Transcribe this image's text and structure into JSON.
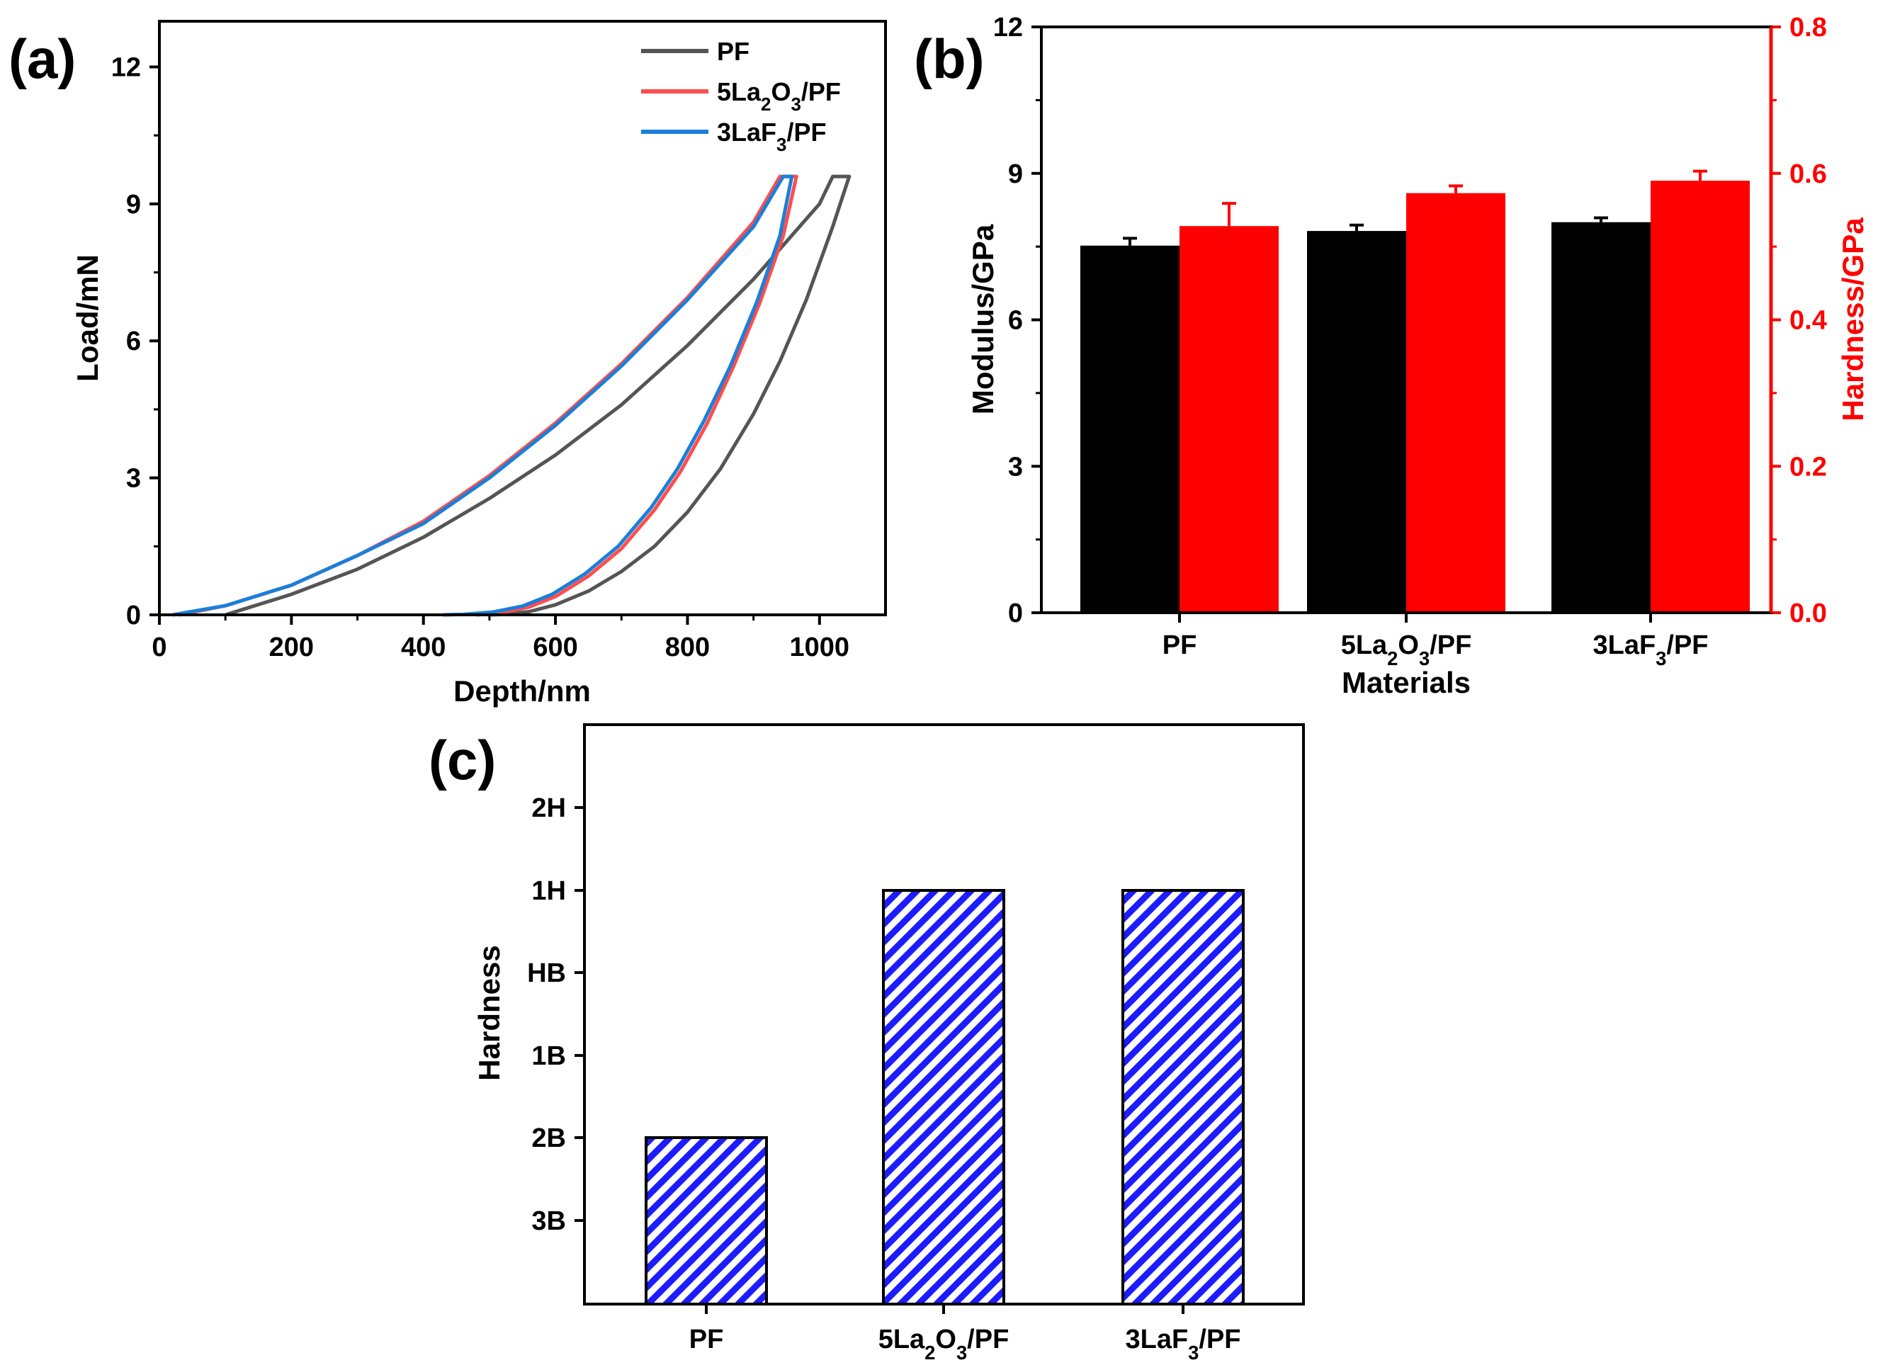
{
  "chart_data": [
    {
      "panel_label": "(a)",
      "type": "line",
      "xlabel": "Depth/nm",
      "ylabel": "Load/mN",
      "xlim": [
        0,
        1100
      ],
      "ylim": [
        0,
        13
      ],
      "xticks": [
        0,
        200,
        400,
        600,
        800,
        1000
      ],
      "yticks": [
        0,
        3,
        6,
        9,
        12
      ],
      "legend_position": "top-right",
      "series": [
        {
          "name_parts": [
            {
              "t": "PF"
            }
          ],
          "color": "#555555",
          "loading": {
            "x": [
              100,
              200,
              300,
              400,
              500,
              600,
              700,
              800,
              900,
              1000,
              1020
            ],
            "y": [
              0.0,
              0.45,
              1.0,
              1.7,
              2.55,
              3.5,
              4.6,
              5.9,
              7.35,
              9.0,
              9.6
            ]
          },
          "hold": {
            "x": [
              1020,
              1045
            ],
            "y": [
              9.6,
              9.6
            ]
          },
          "unloading": {
            "x": [
              1045,
              1020,
              980,
              940,
              900,
              850,
              800,
              750,
              700,
              650,
              600,
              560,
              520,
              500
            ],
            "y": [
              9.6,
              8.5,
              6.9,
              5.55,
              4.4,
              3.2,
              2.25,
              1.5,
              0.95,
              0.52,
              0.22,
              0.07,
              0.01,
              0.0
            ]
          }
        },
        {
          "name_parts": [
            {
              "t": "5La"
            },
            {
              "t": "2",
              "sub": true
            },
            {
              "t": "O"
            },
            {
              "t": "3",
              "sub": true
            },
            {
              "t": "/PF"
            }
          ],
          "color": "#ff4d4d",
          "loading": {
            "x": [
              30,
              100,
              200,
              300,
              400,
              500,
              600,
              700,
              800,
              900,
              940
            ],
            "y": [
              0.0,
              0.2,
              0.65,
              1.3,
              2.05,
              3.05,
              4.2,
              5.5,
              6.95,
              8.6,
              9.6
            ]
          },
          "hold": {
            "x": [
              940,
              965
            ],
            "y": [
              9.6,
              9.6
            ]
          },
          "unloading": {
            "x": [
              965,
              945,
              910,
              870,
              830,
              790,
              750,
              700,
              650,
              600,
              560,
              520,
              490,
              480
            ],
            "y": [
              9.6,
              8.3,
              6.85,
              5.45,
              4.2,
              3.15,
              2.3,
              1.45,
              0.85,
              0.4,
              0.17,
              0.05,
              0.01,
              0.0
            ]
          }
        },
        {
          "name_parts": [
            {
              "t": "3LaF"
            },
            {
              "t": "3",
              "sub": true
            },
            {
              "t": "/PF"
            }
          ],
          "color": "#1a7fd9",
          "loading": {
            "x": [
              20,
              100,
              200,
              300,
              400,
              500,
              600,
              700,
              800,
              900,
              945
            ],
            "y": [
              0.0,
              0.2,
              0.65,
              1.3,
              2.0,
              3.0,
              4.15,
              5.45,
              6.9,
              8.5,
              9.6
            ]
          },
          "hold": {
            "x": [
              945,
              958
            ],
            "y": [
              9.6,
              9.6
            ]
          },
          "unloading": {
            "x": [
              958,
              940,
              905,
              865,
              825,
              785,
              745,
              695,
              645,
              595,
              550,
              505,
              460,
              430
            ],
            "y": [
              9.6,
              8.3,
              6.85,
              5.45,
              4.25,
              3.2,
              2.35,
              1.5,
              0.9,
              0.45,
              0.19,
              0.06,
              0.01,
              0.0
            ]
          }
        }
      ]
    },
    {
      "panel_label": "(b)",
      "type": "bar",
      "xlabel": "Materials",
      "ylabel": "Modulus/GPa",
      "y2label": "Hardness/GPa",
      "ylim": [
        0,
        12
      ],
      "y2lim": [
        0,
        0.8
      ],
      "yticks": [
        0,
        3,
        6,
        9,
        12
      ],
      "y2ticks": [
        "0.0",
        "0.2",
        "0.4",
        "0.6",
        "0.8"
      ],
      "categories_parts": [
        [
          {
            "t": "PF"
          }
        ],
        [
          {
            "t": "5La"
          },
          {
            "t": "2",
            "sub": true
          },
          {
            "t": "O"
          },
          {
            "t": "3",
            "sub": true
          },
          {
            "t": "/PF"
          }
        ],
        [
          {
            "t": "3LaF"
          },
          {
            "t": "3",
            "sub": true
          },
          {
            "t": "/PF"
          }
        ]
      ],
      "series": [
        {
          "axis": "left",
          "color": "#000000",
          "values": [
            7.52,
            7.82,
            8.0
          ],
          "errors": [
            0.15,
            0.12,
            0.09
          ]
        },
        {
          "axis": "right",
          "color": "#ff0000",
          "values": [
            0.528,
            0.573,
            0.59
          ],
          "errors": [
            0.031,
            0.01,
            0.013
          ]
        }
      ]
    },
    {
      "panel_label": "(c)",
      "type": "bar",
      "ylabel": "Hardness",
      "yticks": [
        "3B",
        "2B",
        "1B",
        "HB",
        "1H",
        "2H"
      ],
      "categories_parts": [
        [
          {
            "t": "PF"
          }
        ],
        [
          {
            "t": "5La"
          },
          {
            "t": "2",
            "sub": true
          },
          {
            "t": "O"
          },
          {
            "t": "3",
            "sub": true
          },
          {
            "t": "/PF"
          }
        ],
        [
          {
            "t": "3LaF"
          },
          {
            "t": "3",
            "sub": true
          },
          {
            "t": "/PF"
          }
        ]
      ],
      "values": [
        "2B",
        "1H",
        "1H"
      ],
      "bar_color": "#1c1cff",
      "bar_pattern": "diagonal-hatch"
    }
  ]
}
